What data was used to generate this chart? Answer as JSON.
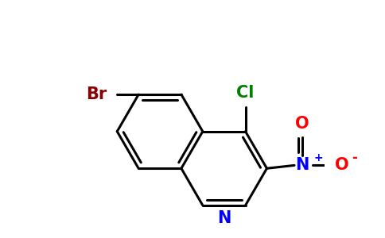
{
  "bg_color": "#ffffff",
  "bond_color": "#000000",
  "bond_width": 2.2,
  "atom_colors": {
    "Br": "#8b0000",
    "Cl": "#008000",
    "N_ring": "#0000ff",
    "N_nitro": "#0000ff",
    "O": "#ff0000",
    "O_neg": "#ff0000"
  },
  "font_size_atoms": 15,
  "font_size_charge": 10,
  "s": 0.42,
  "ox": 0.05,
  "oy": -0.55
}
